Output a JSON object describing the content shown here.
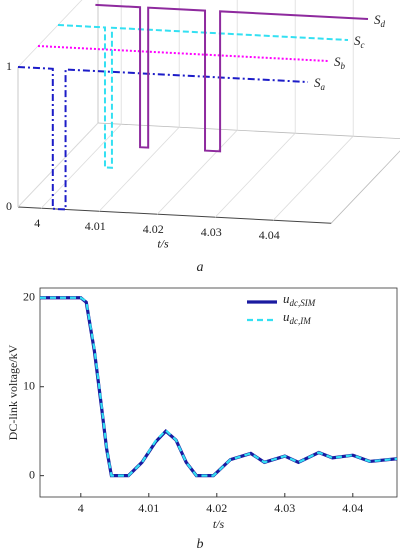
{
  "chart_data": [
    {
      "type": "switch3d",
      "caption": "a",
      "xlabel": "t/s",
      "xlim": [
        3.996,
        4.05
      ],
      "xticks": [
        4,
        4.01,
        4.02,
        4.03,
        4.04
      ],
      "ylim": [
        0,
        1
      ],
      "yticks": [
        0,
        1
      ],
      "series": [
        {
          "name": "Sa",
          "color": "#1c1cc8",
          "x": [
            3.996,
            4.002,
            4.002,
            4.0042,
            4.0042,
            4.046
          ],
          "values": [
            1,
            1,
            0,
            0,
            1,
            1
          ]
        },
        {
          "name": "Sb",
          "color": "#ff00ff",
          "x": [
            3.996,
            4.046
          ],
          "values": [
            1,
            1
          ]
        },
        {
          "name": "Sc",
          "color": "#33e0f2",
          "x": [
            3.996,
            4.0041,
            4.0041,
            4.0053,
            4.0053,
            4.046
          ],
          "values": [
            1,
            1,
            0,
            0,
            1,
            1
          ]
        },
        {
          "name": "Sd",
          "color": "#8e2a9e",
          "x": [
            3.999,
            4.0067,
            4.0067,
            4.0081,
            4.0081,
            4.0179,
            4.0179,
            4.0205,
            4.0205,
            4.046
          ],
          "values": [
            1,
            1,
            0,
            0,
            1,
            1,
            0,
            0,
            1,
            1
          ]
        }
      ]
    },
    {
      "type": "line",
      "caption": "b",
      "xlabel": "t/s",
      "ylabel": "DC-link voltage/kV",
      "xlim": [
        3.994,
        4.0465
      ],
      "xticks": [
        4,
        4.01,
        4.02,
        4.03,
        4.04
      ],
      "ylim": [
        -2.4,
        21.1
      ],
      "yticks": [
        0,
        10,
        20
      ],
      "legend": "top-right",
      "x": [
        3.994,
        4.0,
        4.0008,
        4.002,
        4.003,
        4.0038,
        4.0045,
        4.007,
        4.009,
        4.011,
        4.0125,
        4.014,
        4.0155,
        4.017,
        4.0195,
        4.022,
        4.025,
        4.027,
        4.03,
        4.032,
        4.035,
        4.037,
        4.04,
        4.0425,
        4.0465
      ],
      "series": [
        {
          "name": "udc,SIM",
          "color": "#1a1aa0",
          "values": [
            20,
            20,
            19.5,
            14,
            8,
            3,
            0,
            0,
            1.5,
            3.8,
            5,
            4,
            1.5,
            0,
            0,
            1.8,
            2.5,
            1.5,
            2.2,
            1.5,
            2.6,
            2,
            2.3,
            1.6,
            1.9
          ]
        },
        {
          "name": "udc,IM",
          "color": "#33e0f2",
          "values": [
            20,
            20,
            19.6,
            14.2,
            8.2,
            3.1,
            0,
            0,
            1.5,
            3.9,
            5.1,
            4,
            1.5,
            0,
            0,
            1.8,
            2.5,
            1.5,
            2.2,
            1.5,
            2.6,
            2,
            2.3,
            1.6,
            1.9
          ]
        }
      ]
    }
  ]
}
